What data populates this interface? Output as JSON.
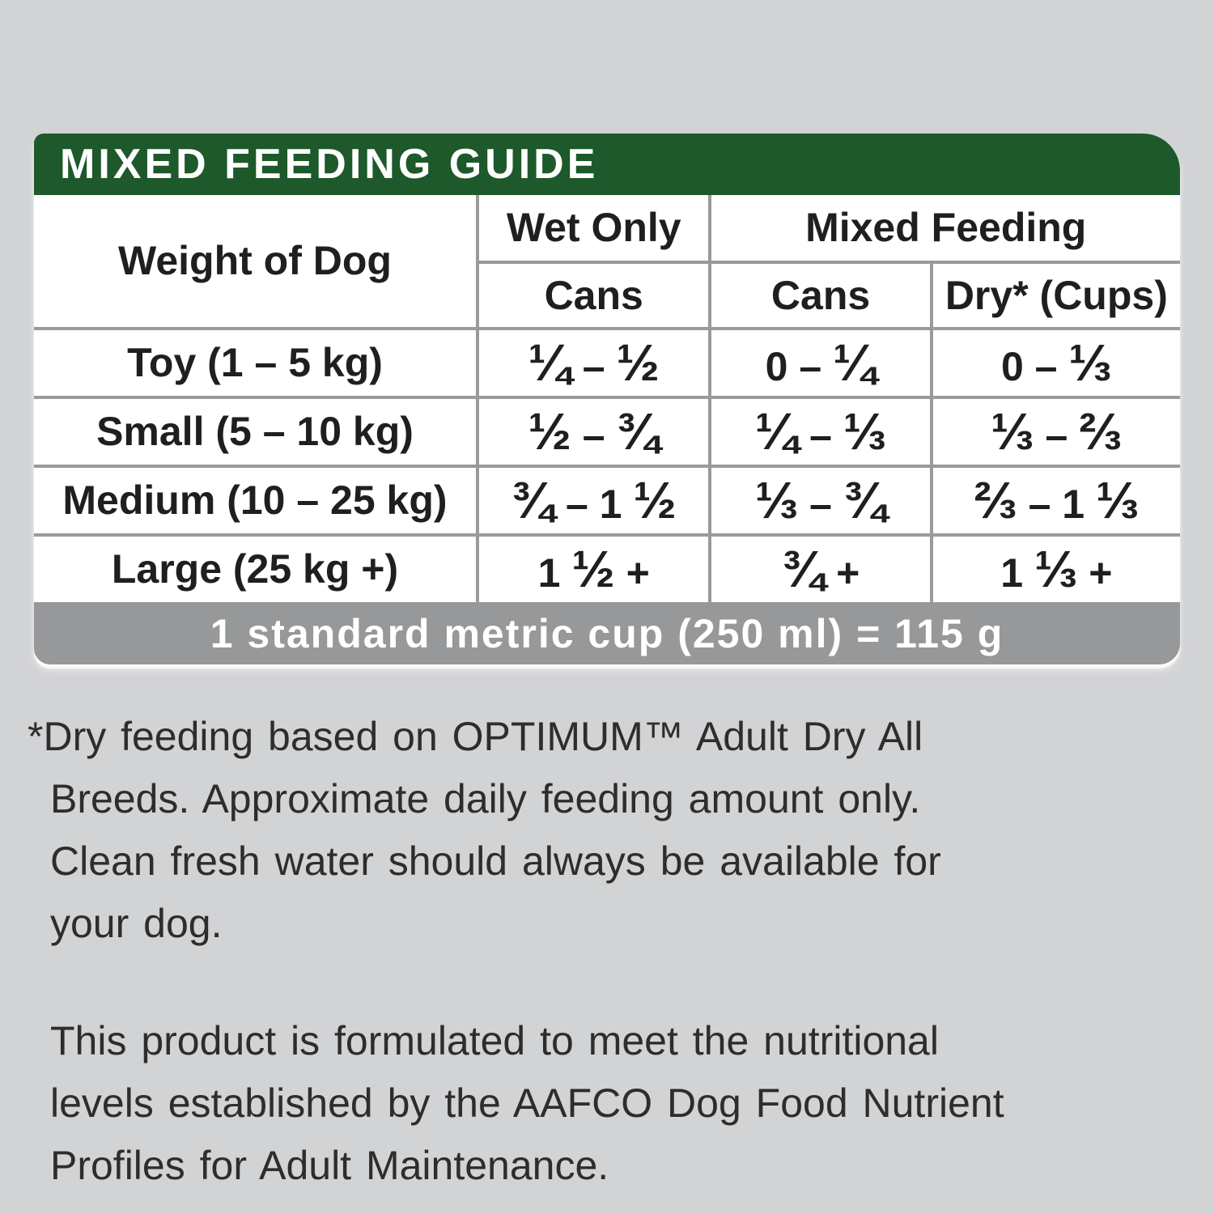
{
  "page": {
    "background_color": "#d2d3d5"
  },
  "card": {
    "header": {
      "title": "MIXED FEEDING GUIDE",
      "background_color": "#1d592b",
      "text_color": "#ffffff"
    },
    "table": {
      "gridline_color": "#9a9a9a",
      "col1_header": "Weight of Dog",
      "group_headers": [
        {
          "label": "Wet Only"
        },
        {
          "label": "Mixed Feeding"
        }
      ],
      "sub_headers": [
        "Cans",
        "Cans",
        "Dry* (Cups)"
      ],
      "rows": [
        {
          "weight": "Toy (1 – 5 kg)",
          "wet_only_cans": "¼ – ½",
          "mixed_cans": "0 – ¼",
          "mixed_dry_cups": "0 – ⅓"
        },
        {
          "weight": "Small (5 – 10 kg)",
          "wet_only_cans": "½ – ¾",
          "mixed_cans": "¼ – ⅓",
          "mixed_dry_cups": "⅓ – ⅔"
        },
        {
          "weight": "Medium (10 – 25 kg)",
          "wet_only_cans": "¾ – 1 ½",
          "mixed_cans": "⅓ – ¾",
          "mixed_dry_cups": "⅔ – 1 ⅓"
        },
        {
          "weight": "Large (25 kg +)",
          "wet_only_cans": "1 ½ +",
          "mixed_cans": "¾ +",
          "mixed_dry_cups": "1 ⅓ +"
        }
      ],
      "cup_note": {
        "text": "1 standard metric cup (250 ml) = 115 g",
        "background_color": "#97989a",
        "text_color": "#ffffff"
      }
    }
  },
  "footnotes": {
    "dry_feeding": "*Dry feeding based on OPTIMUM™ Adult Dry All\nBreeds. Approximate daily feeding amount only.\nClean fresh water should always be available for\nyour dog.",
    "aafco": "This product is formulated to meet the nutritional\nlevels established by the AAFCO Dog Food Nutrient\nProfiles for Adult Maintenance."
  }
}
